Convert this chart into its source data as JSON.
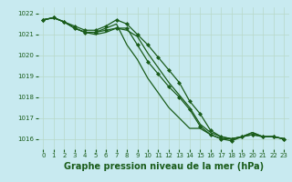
{
  "title": "Graphe pression niveau de la mer (hPa)",
  "background_color": "#c8eaf0",
  "grid_color": "#b8d8c8",
  "line_color": "#1a5c1a",
  "xlim": [
    -0.5,
    23.5
  ],
  "ylim": [
    1015.5,
    1022.3
  ],
  "yticks": [
    1016,
    1017,
    1018,
    1019,
    1020,
    1021,
    1022
  ],
  "xticks": [
    0,
    1,
    2,
    3,
    4,
    5,
    6,
    7,
    8,
    9,
    10,
    11,
    12,
    13,
    14,
    15,
    16,
    17,
    18,
    19,
    20,
    21,
    22,
    23
  ],
  "series": [
    [
      1021.7,
      1021.8,
      1021.6,
      1021.3,
      1021.1,
      1021.0,
      1021.1,
      1021.3,
      1021.2,
      1020.9,
      1020.1,
      1019.4,
      1018.7,
      1018.1,
      1017.5,
      1016.7,
      1016.3,
      1016.1,
      1016.0,
      1016.1,
      1016.3,
      1016.1,
      1016.1,
      1016.0
    ],
    [
      1021.7,
      1021.8,
      1021.6,
      1021.3,
      1021.1,
      1021.1,
      1021.2,
      1021.3,
      1021.3,
      1020.5,
      1019.7,
      1019.1,
      1018.5,
      1018.0,
      1017.4,
      1016.6,
      1016.2,
      1016.0,
      1015.9,
      1016.1,
      1016.2,
      1016.1,
      1016.1,
      1016.0
    ],
    [
      1021.7,
      1021.8,
      1021.6,
      1021.3,
      1021.1,
      1021.1,
      1021.3,
      1021.5,
      1020.5,
      1019.8,
      1018.9,
      1018.2,
      1017.5,
      1017.0,
      1016.5,
      1016.5,
      1016.2,
      1016.0,
      1016.0,
      1016.1,
      1016.3,
      1016.1,
      1016.1,
      1016.0
    ],
    [
      1021.7,
      1021.8,
      1021.6,
      1021.4,
      1021.2,
      1021.2,
      1021.4,
      1021.7,
      1021.5,
      1021.0,
      1020.5,
      1019.9,
      1019.3,
      1018.7,
      1017.8,
      1017.2,
      1016.4,
      1016.1,
      1016.0,
      1016.1,
      1016.2,
      1016.1,
      1016.1,
      1016.0
    ]
  ],
  "marker_series": [
    1,
    3
  ],
  "marker": "D",
  "marker_size": 2.0,
  "linewidth": 0.9,
  "title_fontsize": 7.0,
  "tick_fontsize": 5.0
}
